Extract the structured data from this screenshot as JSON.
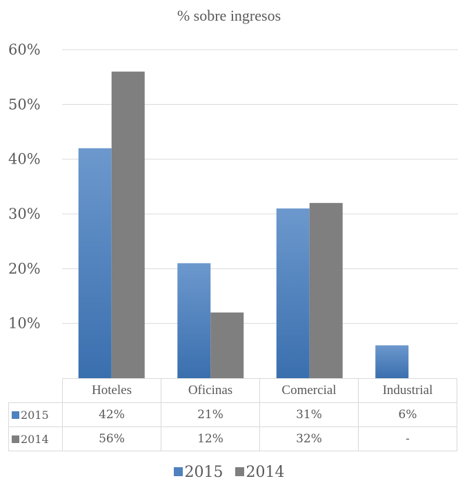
{
  "chart_data": {
    "type": "bar",
    "title": "% sobre ingresos",
    "categories": [
      "Hoteles",
      "Oficinas",
      "Comercial",
      "Industrial"
    ],
    "series": [
      {
        "name": "2015",
        "values": [
          42,
          21,
          31,
          6
        ],
        "labels": [
          "42%",
          "21%",
          "31%",
          "6%"
        ],
        "color": "#4f81bd"
      },
      {
        "name": "2014",
        "values": [
          56,
          12,
          32,
          null
        ],
        "labels": [
          "56%",
          "12%",
          "32%",
          "-"
        ],
        "color": "#7f7f7f"
      }
    ],
    "ylim": [
      0,
      60
    ],
    "yticks": [
      {
        "value": 0,
        "label": "-"
      },
      {
        "value": 10,
        "label": "10%"
      },
      {
        "value": 20,
        "label": "20%"
      },
      {
        "value": 30,
        "label": "30%"
      },
      {
        "value": 40,
        "label": "40%"
      },
      {
        "value": 50,
        "label": "50%"
      },
      {
        "value": 60,
        "label": "60%"
      }
    ],
    "grid": true,
    "legend_position": "bottom",
    "data_table": true
  }
}
